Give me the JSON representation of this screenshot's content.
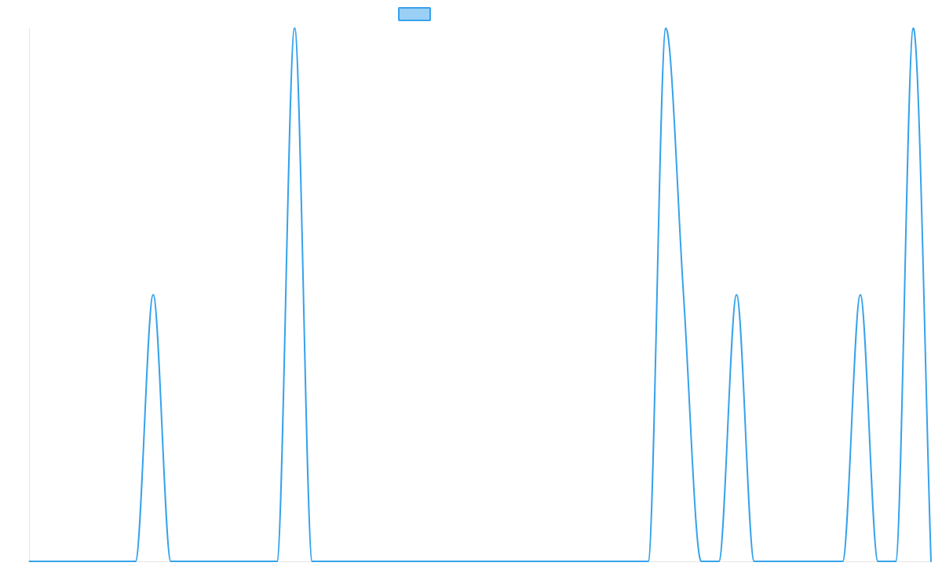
{
  "chart_data": {
    "type": "line",
    "title": "",
    "xlabel": "",
    "ylabel": "",
    "grid": false,
    "legend_position": "top-center",
    "x": [
      0,
      1,
      2,
      3,
      4,
      5,
      6,
      7,
      8,
      9,
      10,
      11,
      12,
      13,
      14,
      15,
      16,
      17,
      18,
      19,
      20,
      21,
      22,
      23,
      24,
      25,
      26,
      27,
      28,
      29,
      30,
      31,
      32,
      33,
      34,
      35,
      36,
      37,
      38,
      39,
      40,
      41,
      42,
      43,
      44,
      45,
      46,
      47,
      48,
      49,
      50,
      51
    ],
    "ylim": [
      0,
      2
    ],
    "series": [
      {
        "color": "#36a2eb",
        "fill_color": "#9ad0f5",
        "values": [
          0,
          0,
          0,
          0,
          0,
          0,
          0,
          1,
          0,
          0,
          0,
          0,
          0,
          0,
          0,
          2,
          0,
          0,
          0,
          0,
          0,
          0,
          0,
          0,
          0,
          0,
          0,
          0,
          0,
          0,
          0,
          0,
          0,
          0,
          0,
          0,
          2,
          1,
          0,
          0,
          1,
          0,
          0,
          0,
          0,
          0,
          0,
          1,
          0,
          0,
          2,
          0
        ]
      }
    ]
  }
}
